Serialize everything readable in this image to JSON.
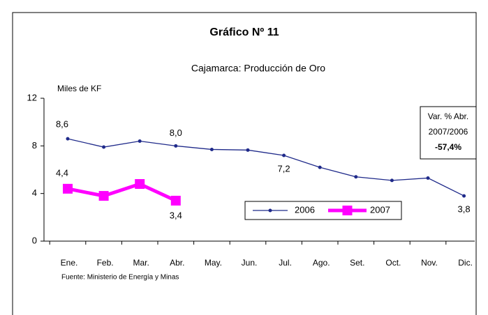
{
  "chart_data": {
    "type": "line",
    "title": "Gráfico Nº 11",
    "subtitle": "Cajamarca: Producción de Oro",
    "y_axis_label": "Miles de KF",
    "source": "Fuente: Ministerio de Energía y Minas",
    "annotation": [
      "Var. % Abr.",
      "2007/2006",
      "-57,4%"
    ],
    "categories": [
      "Ene.",
      "Feb.",
      "Mar.",
      "Abr.",
      "May.",
      "Jun.",
      "Jul.",
      "Ago.",
      "Set.",
      "Oct.",
      "Nov.",
      "Dic."
    ],
    "series": [
      {
        "name": "2006",
        "color": "#1f2a8a",
        "values": [
          8.6,
          7.9,
          8.4,
          8.0,
          7.7,
          7.65,
          7.2,
          6.2,
          5.4,
          5.1,
          5.3,
          3.8
        ],
        "value_labels": [
          "8,6",
          null,
          null,
          "8,0",
          null,
          null,
          "7,2",
          null,
          null,
          null,
          null,
          "3,8"
        ]
      },
      {
        "name": "2007",
        "color": "#ff00ff",
        "values": [
          4.4,
          3.8,
          4.8,
          3.4,
          null,
          null,
          null,
          null,
          null,
          null,
          null,
          null
        ],
        "value_labels": [
          "4,4",
          null,
          null,
          "3,4",
          null,
          null,
          null,
          null,
          null,
          null,
          null,
          null
        ]
      }
    ],
    "ylim": [
      0,
      12
    ],
    "yticks": [
      0,
      4,
      8,
      12
    ],
    "legend": "bottom-right"
  }
}
